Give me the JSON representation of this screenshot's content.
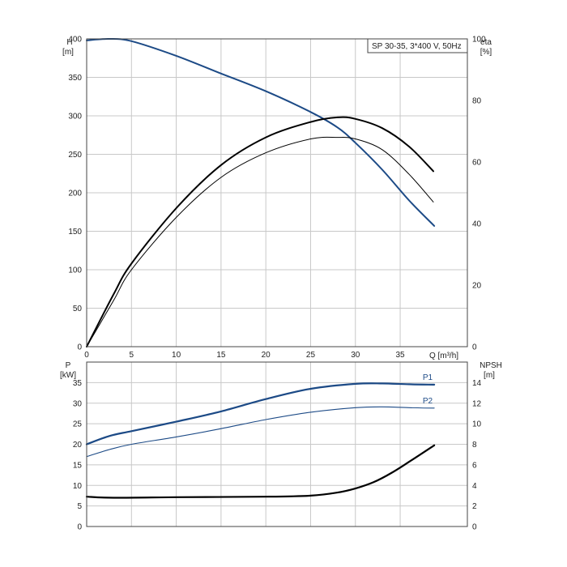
{
  "chart_data": [
    {
      "type": "line",
      "title": "SP 30-35, 3*400 V, 50Hz",
      "xlabel": "Q [m³/h]",
      "ylabel_left": "H",
      "ylabel_left_unit": "[m]",
      "ylabel_right": "eta",
      "ylabel_right_unit": "[%]",
      "xlim": [
        0,
        42.5
      ],
      "ylim_left": [
        0,
        400
      ],
      "ylim_right": [
        0,
        100
      ],
      "x_ticks": [
        "0",
        "5",
        "10",
        "15",
        "20",
        "25",
        "30",
        "35"
      ],
      "y_left_ticks": [
        "0",
        "50",
        "100",
        "150",
        "200",
        "250",
        "300",
        "350",
        "400"
      ],
      "y_right_ticks": [
        "0",
        "20",
        "40",
        "60",
        "80",
        "100"
      ],
      "grid": true,
      "series": [
        {
          "name": "",
          "axis": "left",
          "color": "#1c4a86",
          "points": [
            [
              0,
              398
            ],
            [
              2.5,
              400
            ],
            [
              5,
              397
            ],
            [
              10,
              378
            ],
            [
              15,
              355
            ],
            [
              20,
              332
            ],
            [
              25,
              305
            ],
            [
              28,
              285
            ],
            [
              30,
              265
            ],
            [
              33,
              230
            ],
            [
              36,
              190
            ],
            [
              38.8,
              157
            ]
          ]
        },
        {
          "name": "",
          "axis": "right",
          "color": "#000000",
          "points": [
            [
              0,
              0
            ],
            [
              3,
              15
            ],
            [
              5,
              25
            ],
            [
              10,
              42
            ],
            [
              15,
              55
            ],
            [
              20,
              63
            ],
            [
              25,
              67.5
            ],
            [
              28,
              68
            ],
            [
              30,
              67.5
            ],
            [
              33,
              64
            ],
            [
              36,
              56
            ],
            [
              38.7,
              47
            ]
          ]
        },
        {
          "name": "",
          "axis": "right",
          "color": "#000000",
          "points": [
            [
              0,
              0
            ],
            [
              3,
              17
            ],
            [
              5,
              27
            ],
            [
              10,
              45
            ],
            [
              15,
              59
            ],
            [
              20,
              68
            ],
            [
              25,
              73
            ],
            [
              28,
              74.5
            ],
            [
              30,
              74
            ],
            [
              33,
              71
            ],
            [
              36,
              65
            ],
            [
              38.7,
              57
            ]
          ]
        }
      ]
    },
    {
      "type": "line",
      "title": "",
      "xlabel": "",
      "ylabel_left": "P",
      "ylabel_left_unit": "[kW]",
      "ylabel_right": "NPSH",
      "ylabel_right_unit": "[m]",
      "xlim": [
        0,
        42.5
      ],
      "ylim_left": [
        0,
        40
      ],
      "ylim_right": [
        0,
        16
      ],
      "y_left_ticks": [
        "0",
        "5",
        "10",
        "15",
        "20",
        "25",
        "30",
        "35"
      ],
      "y_right_ticks": [
        "0",
        "2",
        "4",
        "6",
        "8",
        "10",
        "12",
        "14"
      ],
      "grid": true,
      "series": [
        {
          "name": "P1",
          "axis": "left",
          "color": "#1c4a86",
          "points": [
            [
              0,
              20
            ],
            [
              2.5,
              22
            ],
            [
              5,
              23.2
            ],
            [
              10,
              25.5
            ],
            [
              15,
              28
            ],
            [
              20,
              31
            ],
            [
              25,
              33.5
            ],
            [
              30,
              34.7
            ],
            [
              33,
              34.8
            ],
            [
              36,
              34.6
            ],
            [
              38.8,
              34.5
            ]
          ]
        },
        {
          "name": "P2",
          "axis": "left",
          "color": "#1c4a86",
          "points": [
            [
              0,
              17
            ],
            [
              2.5,
              18.7
            ],
            [
              5,
              20
            ],
            [
              10,
              21.8
            ],
            [
              15,
              23.8
            ],
            [
              20,
              26
            ],
            [
              25,
              27.8
            ],
            [
              30,
              28.9
            ],
            [
              33,
              29.1
            ],
            [
              36,
              28.9
            ],
            [
              38.8,
              28.8
            ]
          ]
        },
        {
          "name": "",
          "axis": "right",
          "color": "#000000",
          "points": [
            [
              0,
              2.9
            ],
            [
              3,
              2.8
            ],
            [
              10,
              2.85
            ],
            [
              20,
              2.9
            ],
            [
              25,
              3.0
            ],
            [
              28,
              3.3
            ],
            [
              30,
              3.7
            ],
            [
              32,
              4.3
            ],
            [
              34,
              5.2
            ],
            [
              36,
              6.3
            ],
            [
              38.8,
              7.9
            ]
          ]
        }
      ]
    }
  ]
}
